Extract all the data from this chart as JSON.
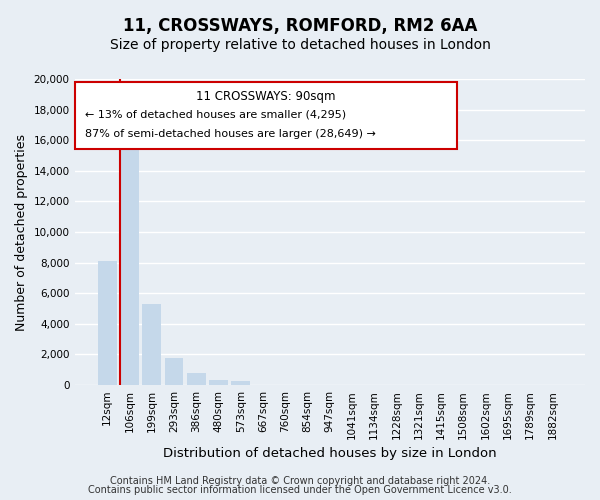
{
  "title": "11, CROSSWAYS, ROMFORD, RM2 6AA",
  "subtitle": "Size of property relative to detached houses in London",
  "xlabel": "Distribution of detached houses by size in London",
  "ylabel": "Number of detached properties",
  "bar_color": "#c5d8ea",
  "highlight_color": "#cc0000",
  "annotation_box_edge": "#cc0000",
  "categories": [
    "12sqm",
    "106sqm",
    "199sqm",
    "293sqm",
    "386sqm",
    "480sqm",
    "573sqm",
    "667sqm",
    "760sqm",
    "854sqm",
    "947sqm",
    "1041sqm",
    "1134sqm",
    "1228sqm",
    "1321sqm",
    "1415sqm",
    "1508sqm",
    "1602sqm",
    "1695sqm",
    "1789sqm",
    "1882sqm"
  ],
  "values": [
    8100,
    16500,
    5300,
    1800,
    800,
    310,
    255,
    0,
    0,
    0,
    0,
    0,
    0,
    0,
    0,
    0,
    0,
    0,
    0,
    0,
    0
  ],
  "red_line_bar_index": 1,
  "ylim": [
    0,
    20000
  ],
  "yticks": [
    0,
    2000,
    4000,
    6000,
    8000,
    10000,
    12000,
    14000,
    16000,
    18000,
    20000
  ],
  "annotation_title": "11 CROSSWAYS: 90sqm",
  "annotation_line1": "← 13% of detached houses are smaller (4,295)",
  "annotation_line2": "87% of semi-detached houses are larger (28,649) →",
  "footer_line1": "Contains HM Land Registry data © Crown copyright and database right 2024.",
  "footer_line2": "Contains public sector information licensed under the Open Government Licence v3.0.",
  "background_color": "#e8eef4",
  "grid_color": "#ffffff",
  "title_fontsize": 12,
  "subtitle_fontsize": 10,
  "axis_label_fontsize": 9,
  "tick_fontsize": 7.5,
  "footer_fontsize": 7
}
